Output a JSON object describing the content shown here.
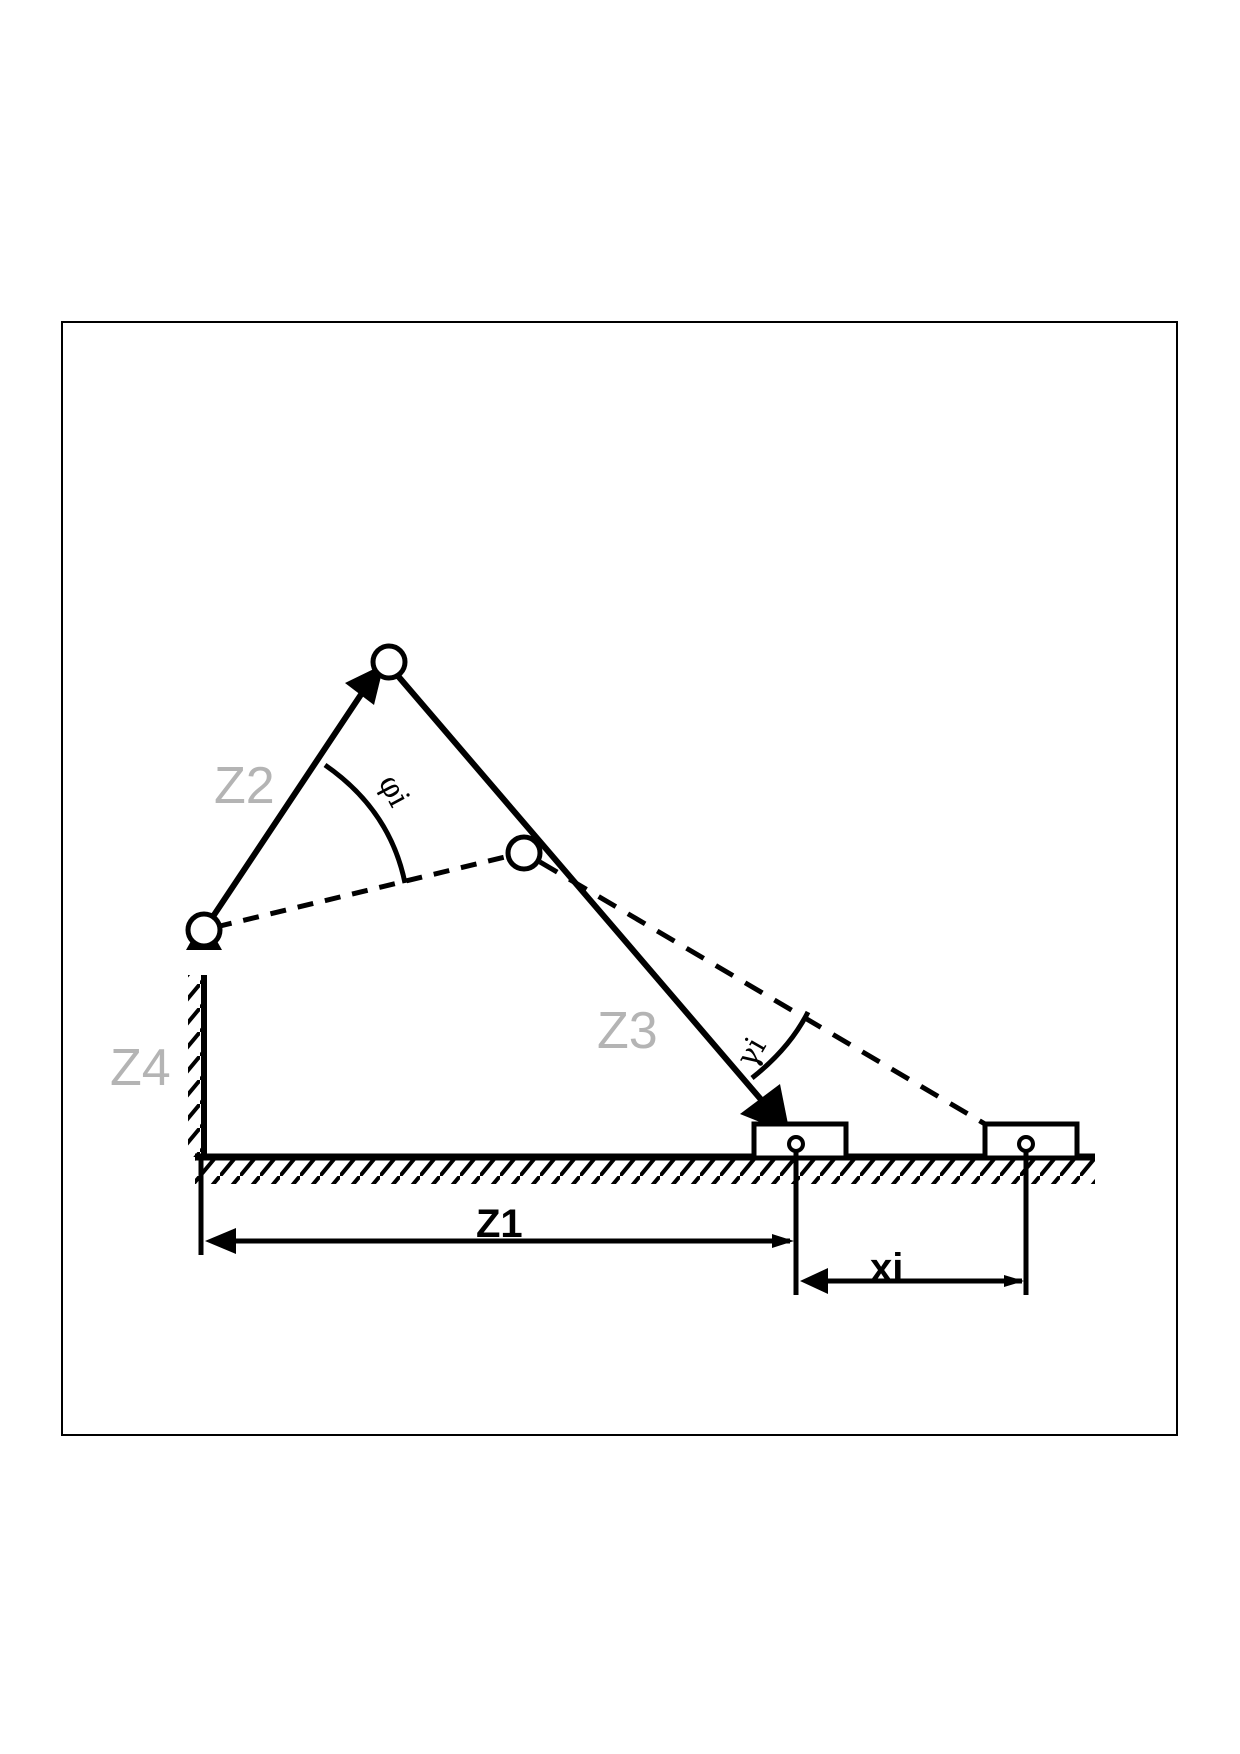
{
  "labels": {
    "z1": "Z1",
    "z2": "Z2",
    "z3": "Z3",
    "z4": "Z4",
    "xi": "xi",
    "phi": "φi",
    "gamma": "γi"
  },
  "colors": {
    "line": "#000000",
    "label_grey": "#b4b4b4",
    "background": "#ffffff"
  }
}
